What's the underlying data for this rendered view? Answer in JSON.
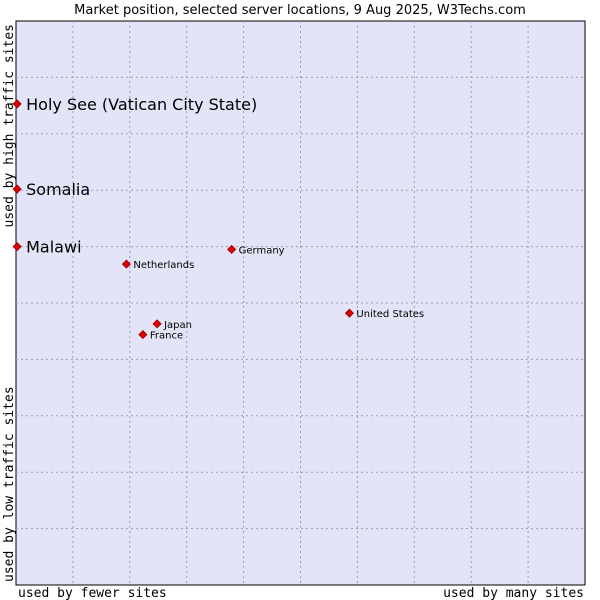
{
  "chart_data": {
    "type": "scatter",
    "title": "Market position, selected server locations, 9 Aug 2025, W3Techs.com",
    "x_axis": {
      "label_low": "used by fewer sites",
      "label_high": "used by many sites",
      "range": [
        0,
        100
      ]
    },
    "y_axis": {
      "label_low": "used by low traffic sites",
      "label_high": "used by high traffic sites",
      "range": [
        0,
        100
      ]
    },
    "grid": true,
    "colors": {
      "plot_background": "#e4e4f8",
      "grid": "#9c9cb8",
      "point": "#dd0000",
      "point_stroke": "#990000"
    },
    "points": [
      {
        "name": "Holy See (Vatican City State)",
        "x": 0.2,
        "y": 85.3,
        "emphasis": true
      },
      {
        "name": "Somalia",
        "x": 0.2,
        "y": 70.2,
        "emphasis": true
      },
      {
        "name": "Malawi",
        "x": 0.2,
        "y": 60.0,
        "emphasis": true
      },
      {
        "name": "Germany",
        "x": 37.9,
        "y": 59.5,
        "emphasis": false
      },
      {
        "name": "Netherlands",
        "x": 19.4,
        "y": 56.9,
        "emphasis": false
      },
      {
        "name": "United States",
        "x": 58.6,
        "y": 48.2,
        "emphasis": false
      },
      {
        "name": "Japan",
        "x": 24.8,
        "y": 46.3,
        "emphasis": false
      },
      {
        "name": "France",
        "x": 22.3,
        "y": 44.4,
        "emphasis": false
      }
    ]
  }
}
